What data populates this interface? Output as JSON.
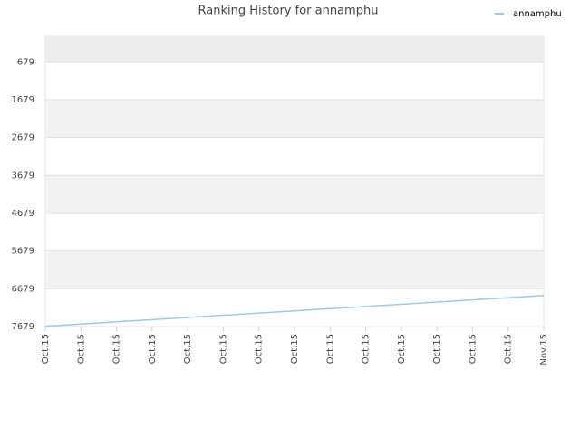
{
  "chart_data": {
    "type": "line",
    "title": "Ranking History for annamphu",
    "categories": [
      "Oct.15",
      "Oct.15",
      "Oct.15",
      "Oct.15",
      "Oct.15",
      "Oct.15",
      "Oct.15",
      "Oct.15",
      "Oct.15",
      "Oct.15",
      "Oct.15",
      "Oct.15",
      "Oct.15",
      "Oct.15",
      "Nov.15"
    ],
    "series": [
      {
        "name": "annamphu",
        "color": "#9ecae1",
        "values": [
          7670,
          7612,
          7554,
          7496,
          7438,
          7380,
          7322,
          7264,
          7206,
          7148,
          7090,
          7032,
          6974,
          6916,
          6858
        ]
      }
    ],
    "ylim": [
      7679,
      0
    ],
    "yticks": [
      679,
      1679,
      2679,
      3679,
      4679,
      5679,
      6679,
      7679
    ],
    "grid": true,
    "legend": "top-right"
  }
}
